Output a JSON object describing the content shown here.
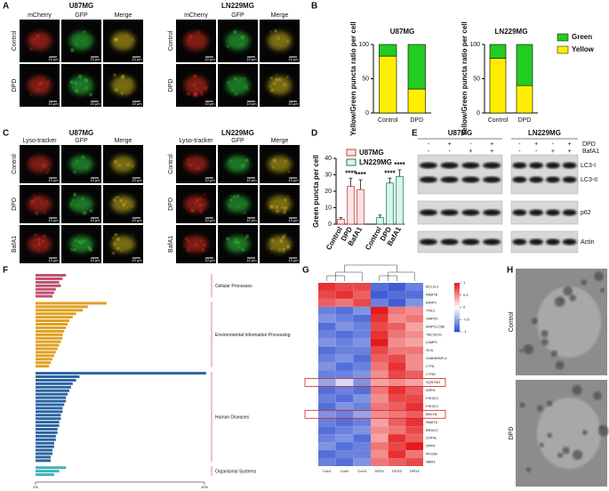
{
  "panel_labels": [
    "A",
    "B",
    "C",
    "D",
    "E",
    "F",
    "G",
    "H"
  ],
  "panel_a": {
    "cell_lines": [
      "U87MG",
      "LN229MG"
    ],
    "channels": [
      "mCherry",
      "GFP",
      "Merge"
    ],
    "conditions": [
      "Control",
      "DPD"
    ],
    "scale_bar": "10 μm"
  },
  "panel_c": {
    "cell_lines": [
      "U87MG",
      "LN229MG"
    ],
    "channels": [
      "Lyso-tracker",
      "GFP",
      "Merge"
    ],
    "conditions": [
      "Control",
      "DPD",
      "BafA1"
    ],
    "scale_bar": "10 μm"
  },
  "panel_e": {
    "cell_lines": [
      "U87MG",
      "LN229MG"
    ],
    "treatments": [
      "DPD",
      "BafA1"
    ],
    "signs": [
      [
        "-",
        "+",
        "-",
        "+"
      ],
      [
        "-",
        "-",
        "+",
        "+"
      ]
    ],
    "bands": [
      "LC3-I",
      "LC3-II",
      "p62",
      "Actin"
    ]
  },
  "panel_h": {
    "conditions": [
      "Control",
      "DPD"
    ]
  },
  "chart_data": [
    {
      "type": "stacked-bar",
      "title": "U87MG",
      "ylabel": "Yellow/Green puncta ratio per cell",
      "categories": [
        "Control",
        "DPD"
      ],
      "series": [
        {
          "name": "Green",
          "color": "#22cc22",
          "values": [
            17,
            65
          ]
        },
        {
          "name": "Yellow",
          "color": "#ffee00",
          "values": [
            83,
            35
          ]
        }
      ],
      "ylim": [
        0,
        100
      ],
      "yticks": [
        0,
        50,
        100
      ]
    },
    {
      "type": "stacked-bar",
      "title": "LN229MG",
      "ylabel": "Yellow/Green puncta ratio per cell",
      "categories": [
        "Control",
        "DPD"
      ],
      "series": [
        {
          "name": "Green",
          "color": "#22cc22",
          "values": [
            20,
            60
          ]
        },
        {
          "name": "Yellow",
          "color": "#ffee00",
          "values": [
            80,
            40
          ]
        }
      ],
      "ylim": [
        0,
        100
      ],
      "yticks": [
        0,
        50,
        100
      ],
      "legend": "right"
    },
    {
      "type": "grouped-bar",
      "ylabel": "Green puncta per cell",
      "categories": [
        "Control",
        "DPD",
        "BafA1"
      ],
      "series": [
        {
          "name": "U87MG",
          "color": "#fbe3e3",
          "edge": "#c04040",
          "values": [
            3,
            23,
            21
          ],
          "errors": [
            1,
            5,
            6
          ],
          "significance": [
            null,
            "****",
            "****"
          ]
        },
        {
          "name": "LN229MG",
          "color": "#d9f5ec",
          "edge": "#208060",
          "values": [
            4,
            25,
            29
          ],
          "errors": [
            1.5,
            3,
            4
          ],
          "significance": [
            null,
            "****",
            "****"
          ]
        }
      ],
      "ylim": [
        0,
        40
      ],
      "yticks": [
        0,
        10,
        20,
        30,
        40
      ],
      "legend": "upper-left"
    },
    {
      "type": "hbar",
      "groups": [
        {
          "name": "Cellular Processes",
          "color": "#c05070",
          "values": [
            1.8,
            1.6,
            1.4,
            1.5,
            1.2,
            1.1,
            1.0
          ]
        },
        {
          "name": "Environmental Information Processing",
          "color": "#e0a020",
          "values": [
            4.2,
            3.1,
            2.8,
            2.4,
            2.2,
            2.0,
            1.9,
            1.8,
            1.7,
            1.6,
            1.6,
            1.5,
            1.4,
            1.3,
            1.2,
            1.1,
            1.0,
            0.9,
            0.8
          ]
        },
        {
          "name": "Human Diseases",
          "color": "#2a64a0",
          "values": [
            10.1,
            2.6,
            2.4,
            2.2,
            2.1,
            2.0,
            1.9,
            1.8,
            1.8,
            1.7,
            1.6,
            1.6,
            1.5,
            1.5,
            1.4,
            1.4,
            1.3,
            1.3,
            1.2,
            1.2,
            1.1,
            1.1,
            1.0,
            1.0,
            0.9,
            0.9
          ]
        },
        {
          "name": "Organismal Systems",
          "color": "#40b0b8",
          "values": [
            1.8,
            1.4,
            1.1
          ]
        }
      ],
      "xlim": [
        0,
        10
      ],
      "xticks": [
        {
          "value": 0,
          "label": "0%"
        },
        {
          "value": 10,
          "label": "10%"
        }
      ]
    },
    {
      "type": "heatmap",
      "x": [
        "Con1",
        "Con2",
        "Con3",
        "DPD1",
        "DPD2",
        "DPD3"
      ],
      "y": [
        "BCL2L1",
        "RAB7B",
        "BNIP3",
        "TFE3",
        "SMPD1",
        "MAP1LC3B",
        "TBC1D15",
        "LAMP1",
        "GLA",
        "GABARAPL1",
        "CTSL",
        "CTSD",
        "SQSTM1",
        "WIPI1",
        "PIK3C3",
        "PIK3C2",
        "BHLHL",
        "RAB7A",
        "BRAG2",
        "ZOF4L",
        "DPP4",
        "ATG2B",
        "NBR1"
      ],
      "values": [
        [
          0.9,
          0.8,
          0.8,
          -0.8,
          -0.9,
          -0.7
        ],
        [
          0.8,
          0.9,
          0.7,
          -0.9,
          -0.8,
          -0.8
        ],
        [
          0.7,
          0.6,
          0.8,
          -0.7,
          -0.9,
          -0.6
        ],
        [
          -0.7,
          -0.8,
          -0.6,
          1.0,
          0.6,
          0.5
        ],
        [
          -0.6,
          -0.7,
          -0.8,
          0.9,
          0.5,
          0.6
        ],
        [
          -0.8,
          -0.6,
          -0.7,
          0.8,
          0.7,
          0.4
        ],
        [
          -0.7,
          -0.8,
          -0.7,
          0.9,
          0.6,
          0.5
        ],
        [
          -0.6,
          -0.7,
          -0.6,
          1.0,
          0.5,
          0.4
        ],
        [
          -0.8,
          -0.7,
          -0.7,
          0.8,
          0.6,
          0.6
        ],
        [
          -0.7,
          -0.6,
          -0.8,
          0.7,
          0.8,
          0.5
        ],
        [
          -0.6,
          -0.8,
          -0.7,
          0.6,
          0.9,
          0.5
        ],
        [
          -0.7,
          -0.7,
          -0.6,
          0.5,
          0.8,
          0.7
        ],
        [
          -0.5,
          -0.2,
          -0.6,
          0.4,
          0.5,
          0.4
        ],
        [
          -0.8,
          -0.7,
          -0.8,
          0.6,
          0.9,
          0.7
        ],
        [
          -0.7,
          -0.8,
          -0.6,
          0.5,
          0.8,
          0.8
        ],
        [
          -0.8,
          -0.6,
          -0.7,
          0.6,
          0.7,
          0.9
        ],
        [
          -0.6,
          -0.7,
          -0.5,
          0.5,
          0.6,
          0.7
        ],
        [
          -0.7,
          -0.8,
          -0.7,
          0.4,
          0.7,
          0.9
        ],
        [
          -0.8,
          -0.7,
          -0.6,
          0.5,
          0.6,
          0.8
        ],
        [
          -0.7,
          -0.6,
          -0.8,
          0.4,
          0.9,
          0.7
        ],
        [
          -0.6,
          -0.8,
          -0.7,
          0.6,
          0.8,
          1.0
        ],
        [
          -0.8,
          -0.7,
          -0.7,
          0.5,
          0.9,
          0.6
        ],
        [
          -0.7,
          -0.8,
          -0.6,
          0.6,
          0.7,
          0.8
        ]
      ],
      "highlight_rows": [
        12,
        16
      ],
      "clim": [
        -1,
        1
      ],
      "colormap": [
        "#2a4bd0",
        "#ffffff",
        "#e41a1c"
      ],
      "colorbar_ticks": [
        1,
        0.5,
        0,
        -0.5,
        -1
      ]
    }
  ]
}
